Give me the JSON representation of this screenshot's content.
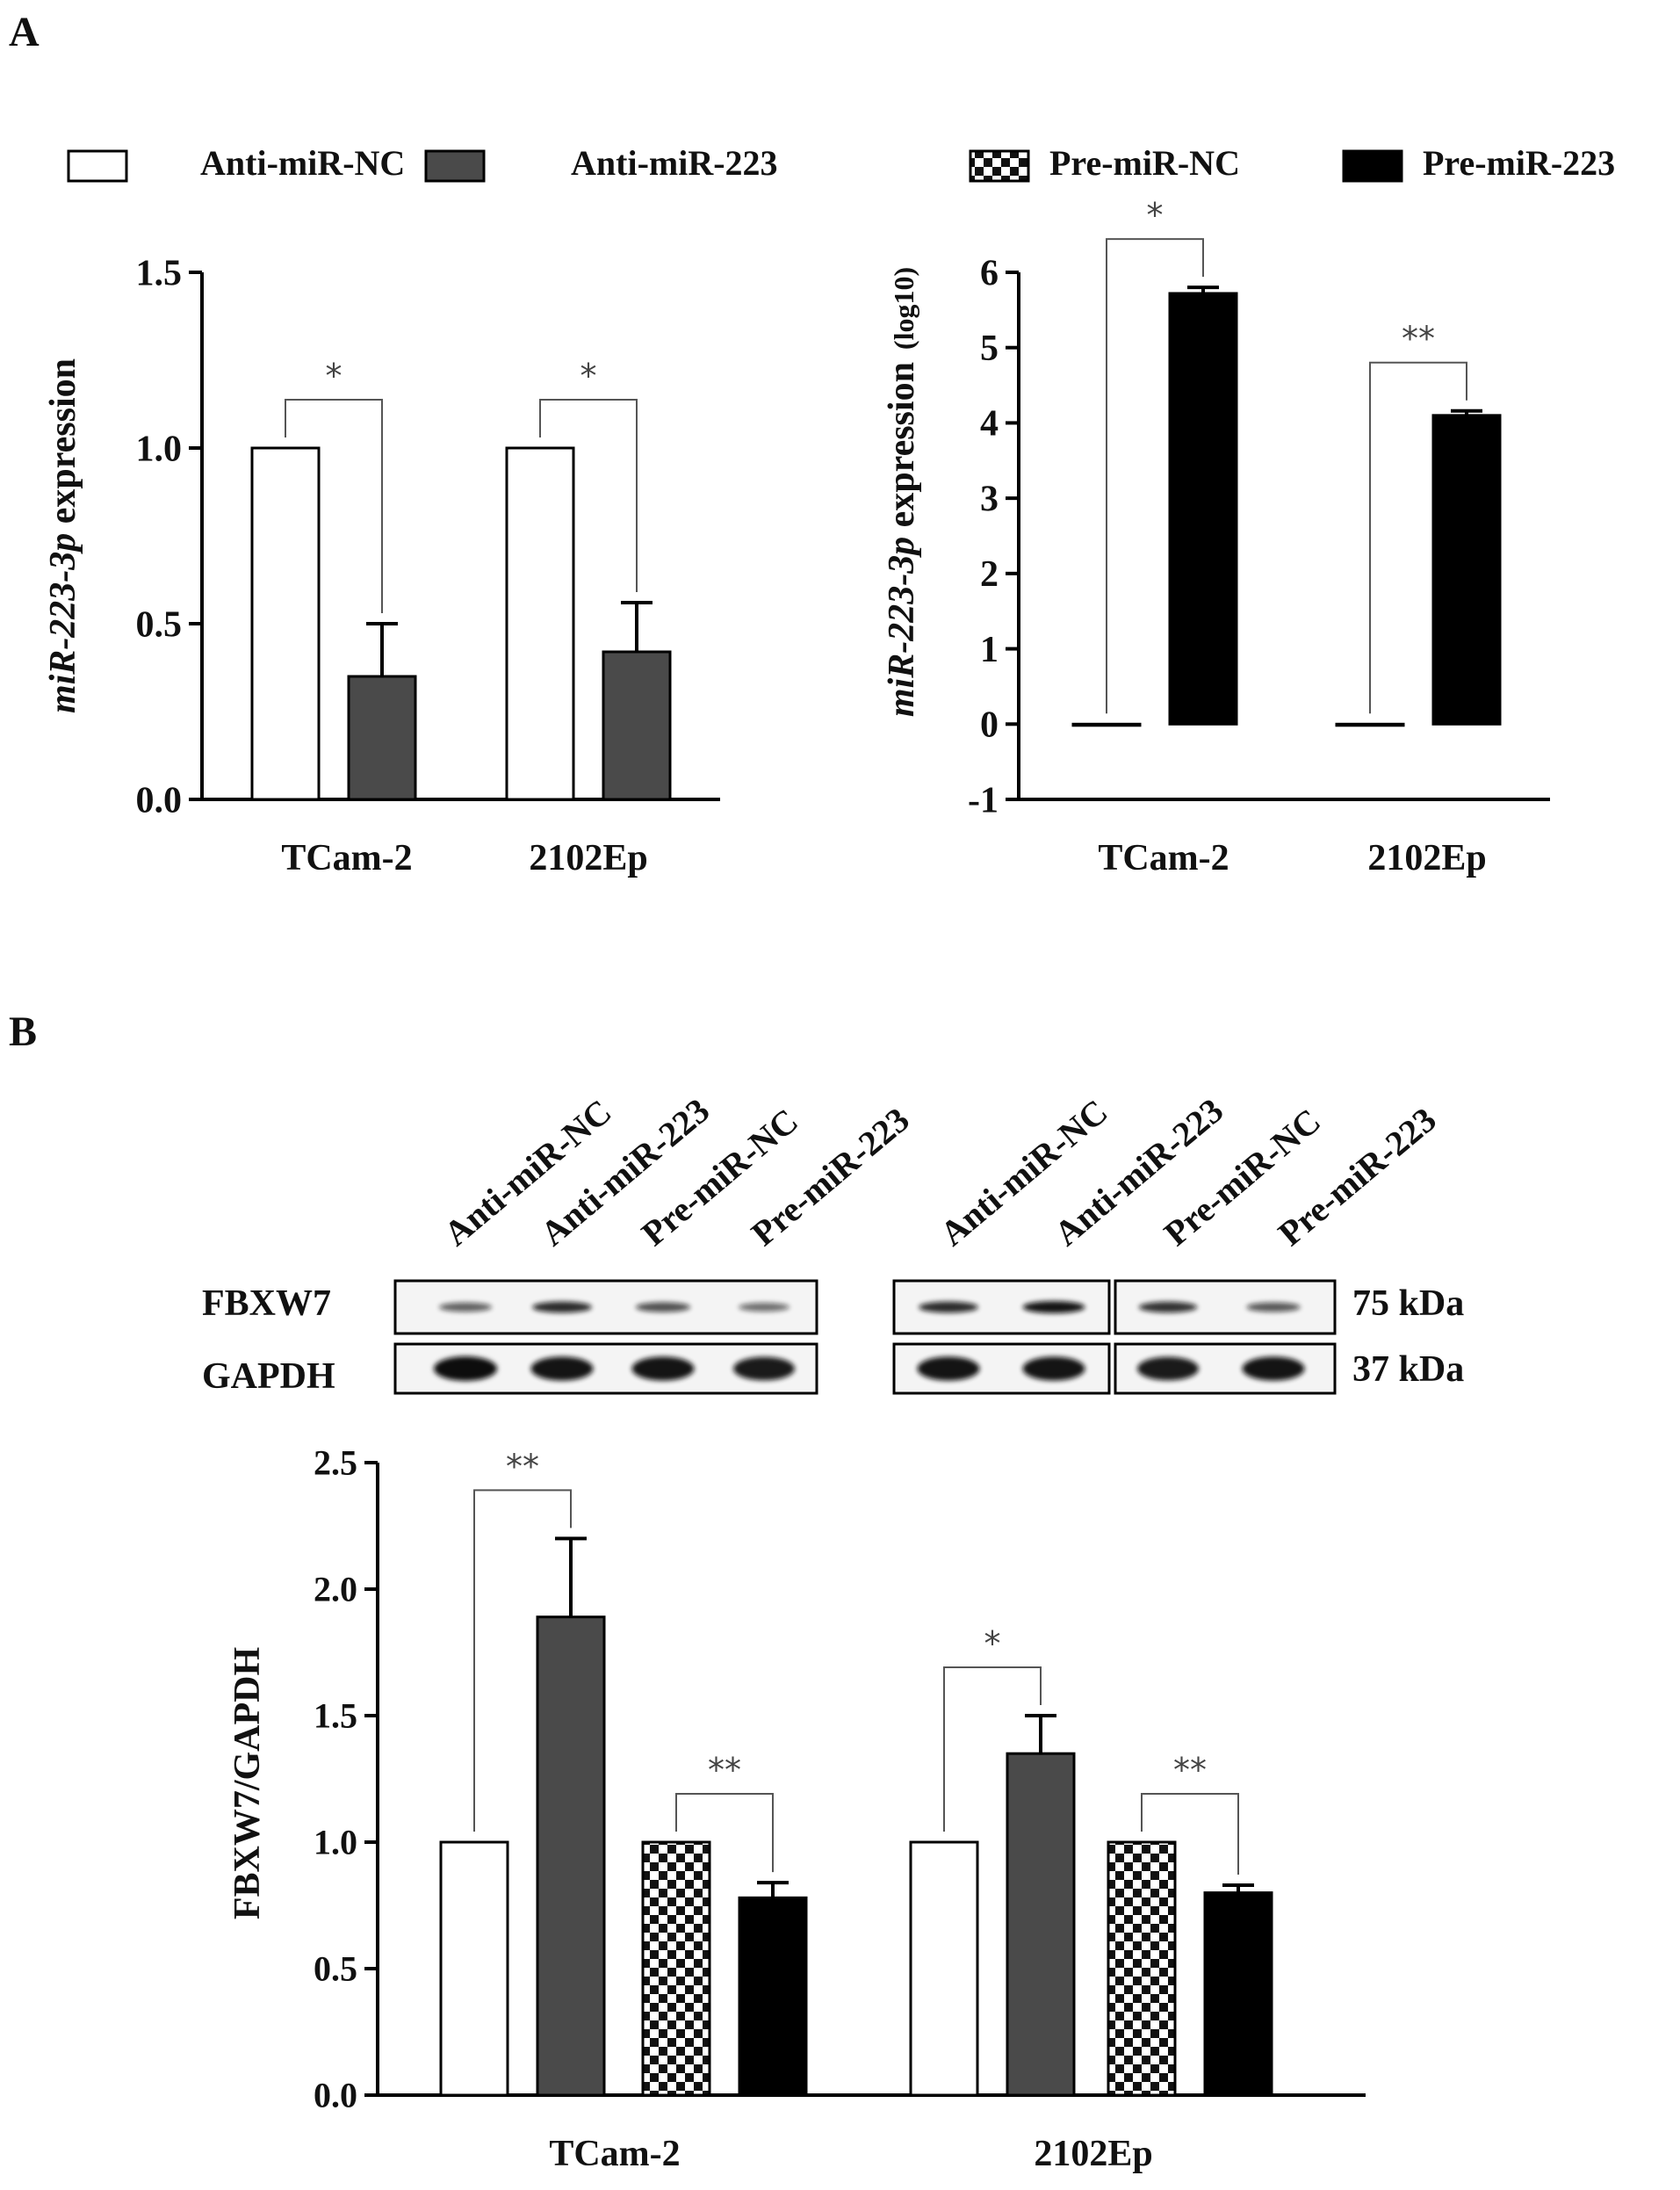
{
  "panel_labels": {
    "a": "A",
    "b": "B"
  },
  "colors": {
    "open": "#ffffff",
    "anti": "#4a4a4a",
    "pre": "#000000",
    "checker_light": "#ffffff",
    "checker_dark": "#111111",
    "axis": "#000000",
    "bracket": "#555555"
  },
  "chart_data": [
    {
      "id": "A1",
      "type": "bar",
      "legend": [
        {
          "name": "Anti-miR-NC",
          "pattern": "open"
        },
        {
          "name": "Anti-miR-223",
          "pattern": "anti"
        }
      ],
      "legend_position": "top",
      "categories": [
        "TCam-2",
        "2102Ep"
      ],
      "series": [
        {
          "name": "Anti-miR-NC",
          "pattern": "open",
          "values": [
            1.0,
            1.0
          ],
          "errors": [
            0,
            0
          ]
        },
        {
          "name": "Anti-miR-223",
          "pattern": "anti",
          "values": [
            0.35,
            0.42
          ],
          "errors": [
            0.15,
            0.14
          ]
        }
      ],
      "ylabel_italic": "miR-223-3p",
      "ylabel_rest": " expression",
      "ylim": [
        0,
        1.5
      ],
      "yticks": [
        "0.0",
        "0.5",
        "1.0",
        "1.5"
      ],
      "grid": false,
      "significance": [
        {
          "category": 0,
          "from_series": 0,
          "to_series": 1,
          "label": "*"
        },
        {
          "category": 1,
          "from_series": 0,
          "to_series": 1,
          "label": "*"
        }
      ]
    },
    {
      "id": "A2",
      "type": "bar",
      "legend": [
        {
          "name": "Pre-miR-NC",
          "pattern": "checker"
        },
        {
          "name": "Pre-miR-223",
          "pattern": "pre"
        }
      ],
      "legend_position": "top",
      "categories": [
        "TCam-2",
        "2102Ep"
      ],
      "series": [
        {
          "name": "Pre-miR-NC",
          "pattern": "checker",
          "values": [
            0.0,
            0.0
          ],
          "errors": [
            0,
            0
          ]
        },
        {
          "name": "Pre-miR-223",
          "pattern": "pre",
          "values": [
            5.72,
            4.1
          ],
          "errors": [
            0.08,
            0.06
          ]
        }
      ],
      "ylabel_italic": "miR-223-3p",
      "ylabel_rest": " expression",
      "ylabel_unit": "(log10)",
      "ylim": [
        -1,
        6
      ],
      "yticks": [
        "-1",
        "0",
        "1",
        "2",
        "3",
        "4",
        "5",
        "6"
      ],
      "grid": false,
      "significance": [
        {
          "category": 0,
          "from_series": 0,
          "to_series": 1,
          "label": "*"
        },
        {
          "category": 1,
          "from_series": 0,
          "to_series": 1,
          "label": "**"
        }
      ]
    },
    {
      "id": "B",
      "type": "bar",
      "categories": [
        "TCam-2",
        "2102Ep"
      ],
      "series": [
        {
          "name": "Anti-miR-NC",
          "pattern": "open",
          "values": [
            1.0,
            1.0
          ],
          "errors": [
            0,
            0
          ]
        },
        {
          "name": "Anti-miR-223",
          "pattern": "anti",
          "values": [
            1.89,
            1.35
          ],
          "errors": [
            0.31,
            0.15
          ]
        },
        {
          "name": "Pre-miR-NC",
          "pattern": "checker",
          "values": [
            1.0,
            1.0
          ],
          "errors": [
            0,
            0
          ]
        },
        {
          "name": "Pre-miR-223",
          "pattern": "pre",
          "values": [
            0.78,
            0.8
          ],
          "errors": [
            0.06,
            0.03
          ]
        }
      ],
      "ylabel": "FBXW7/GAPDH",
      "ylim": [
        0,
        2.5
      ],
      "yticks": [
        "0.0",
        "0.5",
        "1.0",
        "1.5",
        "2.0",
        "2.5"
      ],
      "grid": false,
      "significance": [
        {
          "category": 0,
          "from_series": 0,
          "to_series": 1,
          "label": "**"
        },
        {
          "category": 0,
          "from_series": 2,
          "to_series": 3,
          "label": "**"
        },
        {
          "category": 1,
          "from_series": 0,
          "to_series": 1,
          "label": "*"
        },
        {
          "category": 1,
          "from_series": 2,
          "to_series": 3,
          "label": "**"
        }
      ]
    }
  ],
  "western_blot": {
    "lane_labels_left": [
      "Anti-miR-NC",
      "Anti-miR-223",
      "Pre-miR-NC",
      "Pre-miR-223"
    ],
    "lane_labels_right": [
      "Anti-miR-NC",
      "Anti-miR-223",
      "Pre-miR-NC",
      "Pre-miR-223"
    ],
    "rows": [
      {
        "protein": "FBXW7",
        "size": "75 kDa",
        "band_intensity": [
          0.45,
          0.8,
          0.55,
          0.35,
          0.8,
          0.95,
          0.75,
          0.5
        ]
      },
      {
        "protein": "GAPDH",
        "size": "37 kDa",
        "band_intensity": [
          1.0,
          0.95,
          0.95,
          0.9,
          0.95,
          0.95,
          0.9,
          0.95
        ]
      }
    ]
  }
}
